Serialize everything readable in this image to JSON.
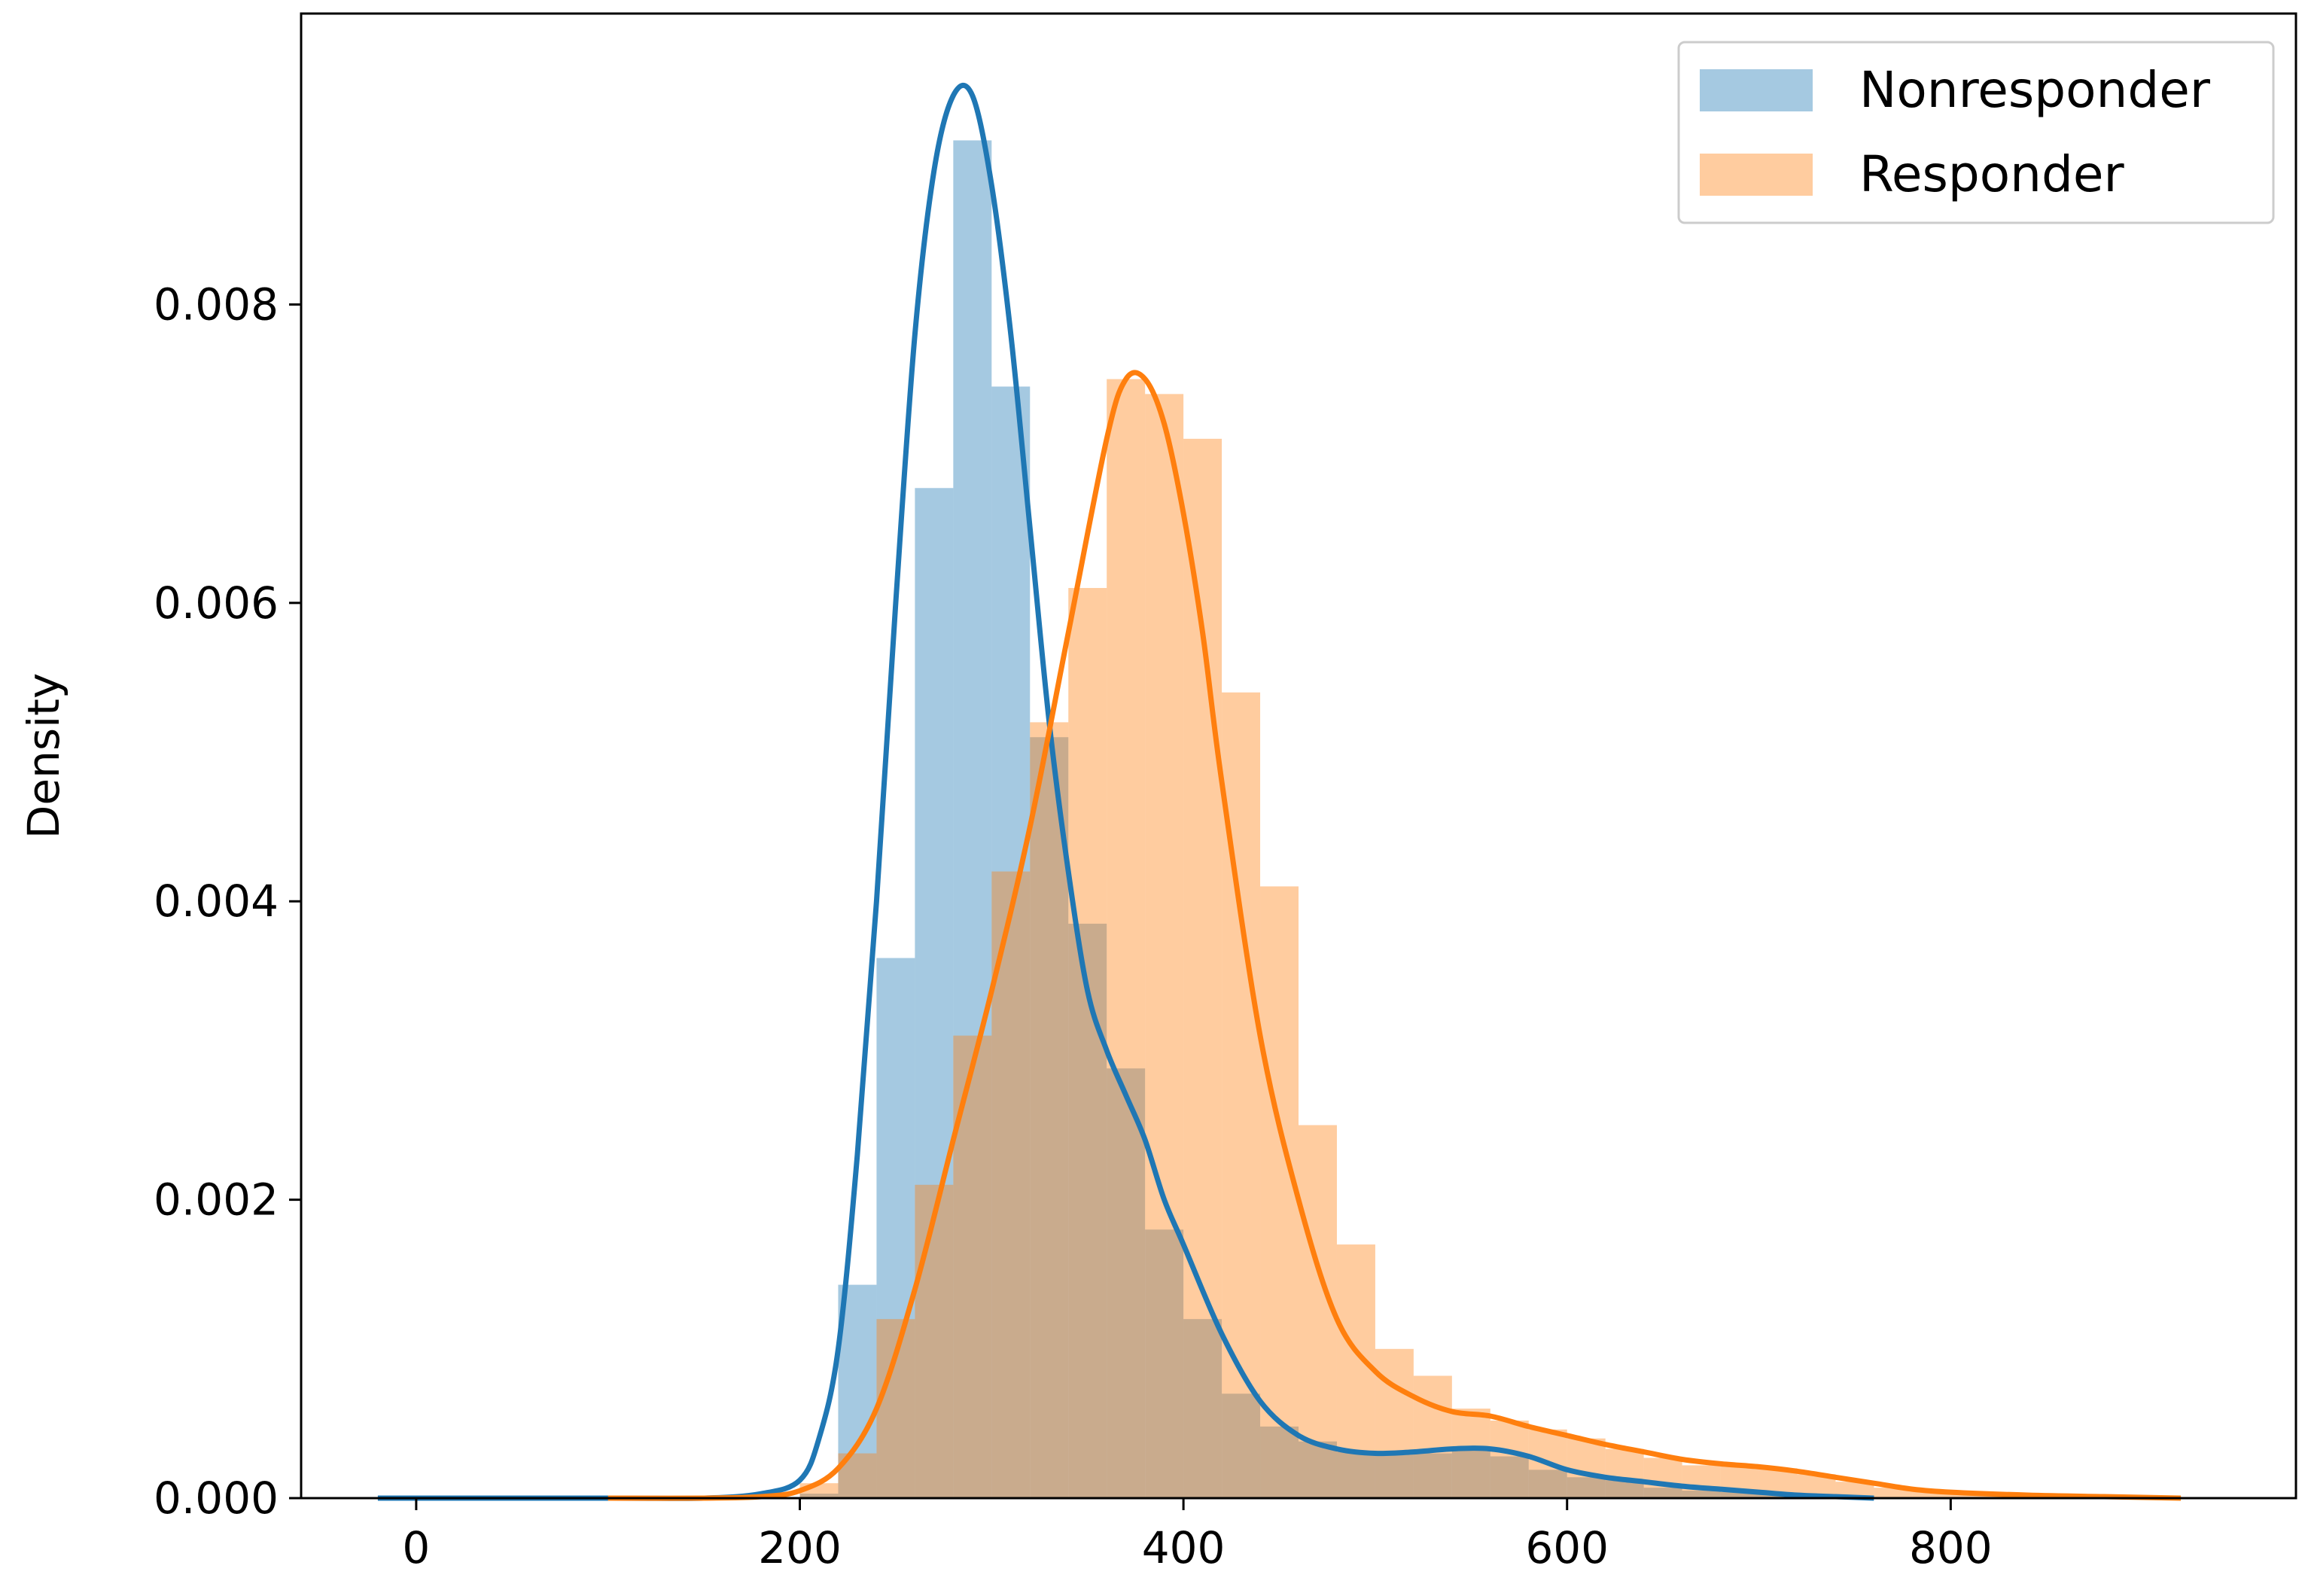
{
  "chart_data": {
    "type": "histogram-kde",
    "xlabel": "",
    "ylabel": "Density",
    "xlim": [
      -60,
      980
    ],
    "ylim": [
      0,
      0.00995
    ],
    "x_ticks": [
      0,
      200,
      400,
      600,
      800
    ],
    "x_tick_labels": [
      "0",
      "200",
      "400",
      "600",
      "800"
    ],
    "y_ticks": [
      0,
      0.002,
      0.004,
      0.006,
      0.008
    ],
    "y_tick_labels": [
      "0.000",
      "0.002",
      "0.004",
      "0.006",
      "0.008"
    ],
    "grid": false,
    "legend": {
      "position": "top-right"
    },
    "colors": {
      "nonresponder_bar": "#1f77b4",
      "nonresponder_line": "#1f77b4",
      "responder_bar": "#ff7f0e",
      "responder_line": "#ff7f0e"
    },
    "series": [
      {
        "name": "Nonresponder",
        "bins": {
          "edges": [
            -20,
            100,
            120,
            140,
            160,
            180,
            200,
            220,
            240,
            260,
            280,
            300,
            320,
            340,
            360,
            380,
            400,
            420,
            440,
            460,
            480,
            500,
            520,
            540,
            560,
            580,
            600,
            620,
            640,
            660,
            680,
            700,
            720,
            740
          ],
          "heights": [
            0.0,
            0.0,
            0.0,
            0.0,
            0.0,
            0.0,
            3e-05,
            0.00143,
            0.00362,
            0.00677,
            0.0091,
            0.00745,
            0.0051,
            0.00385,
            0.00288,
            0.0018,
            0.0012,
            0.0007,
            0.00048,
            0.00038,
            0.00031,
            0.0003,
            0.0003,
            0.00033,
            0.00028,
            0.00019,
            0.00014,
            0.00012,
            7e-05,
            5e-05,
            4e-05,
            3e-05,
            1e-05
          ]
        },
        "kde": {
          "x": [
            -20,
            100,
            150,
            180,
            200,
            210,
            220,
            230,
            240,
            250,
            260,
            270,
            280,
            290,
            300,
            310,
            320,
            330,
            340,
            350,
            360,
            370,
            380,
            390,
            400,
            420,
            440,
            460,
            480,
            500,
            520,
            540,
            560,
            580,
            600,
            620,
            640,
            660,
            680,
            700,
            720,
            740,
            760
          ],
          "y": [
            0.0,
            0.0,
            0.0,
            3e-05,
            0.00012,
            0.0004,
            0.001,
            0.0023,
            0.004,
            0.006,
            0.0078,
            0.0089,
            0.0094,
            0.0094,
            0.0088,
            0.0078,
            0.0065,
            0.0052,
            0.0042,
            0.0034,
            0.003,
            0.0027,
            0.0024,
            0.002,
            0.0017,
            0.0011,
            0.00065,
            0.00042,
            0.00033,
            0.0003,
            0.00031,
            0.00033,
            0.00033,
            0.00028,
            0.00019,
            0.00014,
            0.00011,
            8e-05,
            6e-05,
            4e-05,
            2e-05,
            1e-05,
            0.0
          ]
        }
      },
      {
        "name": "Responder",
        "bins": {
          "edges": [
            100,
            120,
            140,
            160,
            180,
            200,
            220,
            240,
            260,
            280,
            300,
            320,
            340,
            360,
            380,
            400,
            420,
            440,
            460,
            480,
            500,
            520,
            540,
            560,
            580,
            600,
            620,
            640,
            660,
            680,
            700,
            720,
            740,
            760,
            780,
            800,
            820,
            840,
            860,
            880,
            900,
            920
          ],
          "heights": [
            0.0,
            0.0,
            0.0,
            0.0,
            0.0,
            0.0001,
            0.0003,
            0.0012,
            0.0021,
            0.0031,
            0.0042,
            0.0052,
            0.0061,
            0.0075,
            0.0074,
            0.0071,
            0.0054,
            0.0041,
            0.0025,
            0.0017,
            0.001,
            0.00082,
            0.0006,
            0.00052,
            0.00046,
            0.0004,
            0.00033,
            0.00027,
            0.00022,
            0.00022,
            0.0002,
            0.00016,
            0.00011,
            7e-05,
            5e-05,
            3e-05,
            2e-05,
            1e-05,
            1e-05,
            1e-05,
            0.0
          ]
        },
        "kde": {
          "x": [
            100,
            150,
            180,
            200,
            220,
            240,
            260,
            280,
            300,
            320,
            340,
            360,
            370,
            380,
            390,
            400,
            410,
            420,
            440,
            460,
            480,
            500,
            520,
            540,
            560,
            580,
            600,
            620,
            640,
            660,
            680,
            700,
            720,
            740,
            760,
            780,
            800,
            840,
            880,
            920
          ],
          "y": [
            0.0,
            0.0,
            1e-05,
            5e-05,
            0.0002,
            0.0006,
            0.0014,
            0.0024,
            0.0034,
            0.0045,
            0.0058,
            0.0071,
            0.0075,
            0.0075,
            0.0072,
            0.0066,
            0.0058,
            0.0048,
            0.0031,
            0.002,
            0.0012,
            0.00085,
            0.00068,
            0.00058,
            0.00055,
            0.00048,
            0.00042,
            0.00036,
            0.00031,
            0.00026,
            0.00023,
            0.00021,
            0.00018,
            0.00014,
            0.0001,
            6e-05,
            4e-05,
            2e-05,
            1e-05,
            0.0
          ]
        }
      }
    ]
  }
}
